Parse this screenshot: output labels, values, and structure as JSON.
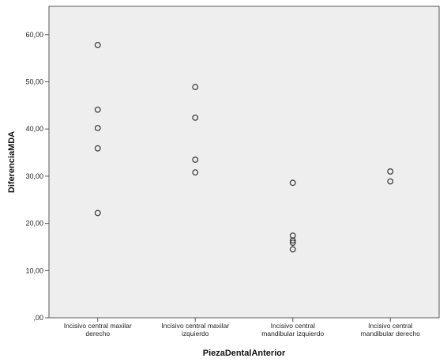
{
  "chart_data": {
    "type": "scatter",
    "xlabel": "PiezaDentalAnterior",
    "ylabel": "DiferenciaMDA",
    "categories": [
      [
        "Incisivo central maxilar",
        "derecho"
      ],
      [
        "Incisivo central maxilar",
        "izquierdo"
      ],
      [
        "Incisivo central",
        "mandibular izquierdo"
      ],
      [
        "Incisivo central",
        "mandibular derecho"
      ]
    ],
    "points": [
      {
        "category": 0,
        "y": 57.8
      },
      {
        "category": 0,
        "y": 44.1
      },
      {
        "category": 0,
        "y": 40.2
      },
      {
        "category": 0,
        "y": 35.9
      },
      {
        "category": 0,
        "y": 22.2
      },
      {
        "category": 1,
        "y": 48.9
      },
      {
        "category": 1,
        "y": 42.4
      },
      {
        "category": 1,
        "y": 33.5
      },
      {
        "category": 1,
        "y": 30.8
      },
      {
        "category": 2,
        "y": 28.6
      },
      {
        "category": 2,
        "y": 17.4
      },
      {
        "category": 2,
        "y": 16.4
      },
      {
        "category": 2,
        "y": 15.9
      },
      {
        "category": 2,
        "y": 14.5
      },
      {
        "category": 3,
        "y": 31.0
      },
      {
        "category": 3,
        "y": 28.9
      }
    ],
    "yticks": [
      {
        "value": 0,
        "label": ",00"
      },
      {
        "value": 10,
        "label": "10,00"
      },
      {
        "value": 20,
        "label": "20,00"
      },
      {
        "value": 30,
        "label": "30,00"
      },
      {
        "value": 40,
        "label": "40,00"
      },
      {
        "value": 50,
        "label": "50,00"
      },
      {
        "value": 60,
        "label": "60,00"
      }
    ],
    "ylim": [
      0,
      66
    ],
    "grid": false,
    "legend": "none",
    "colors": {
      "plot_background": "#eeeeee",
      "marker_stroke": "#333333",
      "axis": "#555555"
    }
  }
}
